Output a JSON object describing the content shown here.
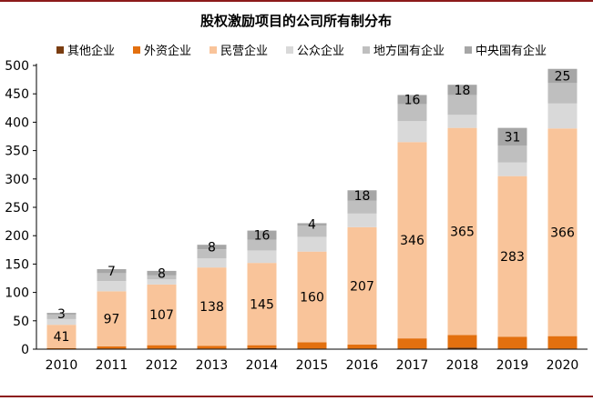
{
  "chart_data": {
    "type": "bar",
    "stacked": true,
    "title": "股权激励项目的公司所有制分布",
    "xlabel": "",
    "ylabel": "",
    "ylim": [
      0,
      500
    ],
    "yticks": [
      0,
      50,
      100,
      150,
      200,
      250,
      300,
      350,
      400,
      450,
      500
    ],
    "grid": false,
    "legend_position": "top",
    "categories": [
      "2010",
      "2011",
      "2012",
      "2013",
      "2014",
      "2015",
      "2016",
      "2017",
      "2018",
      "2019",
      "2020"
    ],
    "series": [
      {
        "name": "其他企业",
        "color": "#7a3d10",
        "values": [
          0,
          1,
          1,
          1,
          2,
          1,
          1,
          1,
          3,
          1,
          1
        ]
      },
      {
        "name": "外资企业",
        "color": "#e3700f",
        "values": [
          2,
          4,
          6,
          5,
          5,
          11,
          7,
          18,
          22,
          21,
          22
        ]
      },
      {
        "name": "民营企业",
        "color": "#f9c49a",
        "values": [
          41,
          97,
          107,
          138,
          145,
          160,
          207,
          346,
          365,
          283,
          366
        ]
      },
      {
        "name": "公众企业",
        "color": "#d9d9d9",
        "values": [
          10,
          18,
          9,
          16,
          22,
          26,
          24,
          37,
          23,
          24,
          44
        ]
      },
      {
        "name": "地方国有企业",
        "color": "#bfbfbf",
        "values": [
          8,
          14,
          7,
          16,
          19,
          20,
          23,
          30,
          35,
          30,
          36
        ]
      },
      {
        "name": "中央国有企业",
        "color": "#a6a6a6",
        "values": [
          3,
          7,
          8,
          8,
          16,
          4,
          18,
          16,
          18,
          31,
          25
        ]
      }
    ],
    "data_labels": {
      "民营企业": [
        "41",
        "97",
        "107",
        "138",
        "145",
        "160",
        "207",
        "346",
        "365",
        "283",
        "366"
      ],
      "中央国有企业": [
        "3",
        "7",
        "8",
        "8",
        "16",
        "4",
        "18",
        "16",
        "18",
        "31",
        "25"
      ]
    }
  },
  "colors": {
    "frame": "#8c1a1a",
    "axis": "#000000"
  }
}
